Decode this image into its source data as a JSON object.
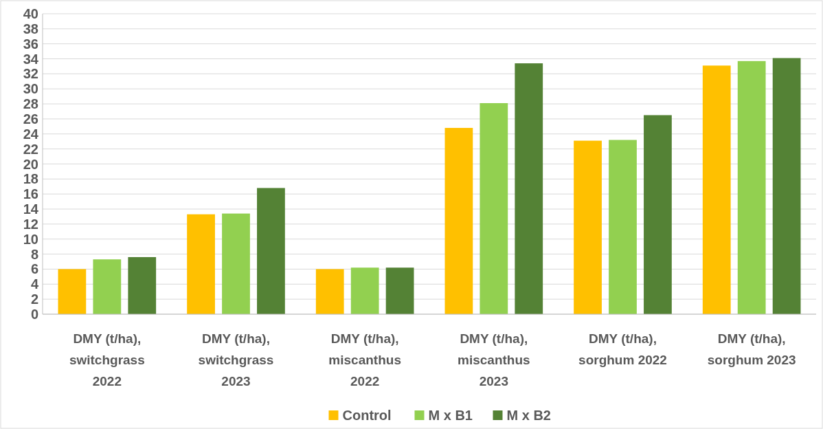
{
  "chart_data": {
    "type": "bar",
    "categories": [
      "DMY (t/ha), switchgrass 2022",
      "DMY (t/ha), switchgrass 2023",
      "DMY (t/ha), miscanthus 2022",
      "DMY (t/ha), miscanthus 2023",
      "DMY (t/ha), sorghum 2022",
      "DMY (t/ha), sorghum 2023"
    ],
    "series": [
      {
        "name": "Control",
        "color": "#ffc000",
        "values": [
          6.0,
          13.3,
          6.0,
          24.8,
          23.1,
          33.1
        ]
      },
      {
        "name": "M x B1",
        "color": "#92d050",
        "values": [
          7.3,
          13.4,
          6.2,
          28.1,
          23.2,
          33.7
        ]
      },
      {
        "name": "M x B2",
        "color": "#548235",
        "values": [
          7.6,
          16.8,
          6.2,
          33.4,
          26.5,
          34.1
        ]
      }
    ],
    "ylim": [
      0,
      40
    ],
    "yticks": [
      0,
      2,
      4,
      6,
      8,
      10,
      12,
      14,
      16,
      18,
      20,
      22,
      24,
      26,
      28,
      30,
      32,
      34,
      36,
      38,
      40
    ],
    "grid": "y",
    "legend": "bottom"
  }
}
